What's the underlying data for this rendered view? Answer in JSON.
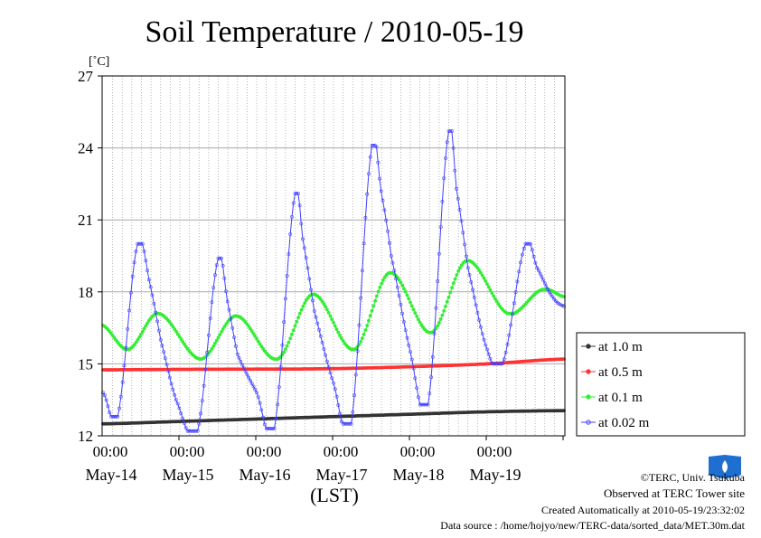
{
  "chart_data": {
    "type": "line",
    "title": "Soil Temperature / 2010-05-19",
    "ylabel": "[˚C]",
    "xlabel": "(LST)",
    "ylim": [
      12,
      27
    ],
    "yticks": [
      12,
      15,
      18,
      21,
      24,
      27
    ],
    "xlim": [
      0,
      6
    ],
    "x_units": "days from 2010-05-13 12:00 LST",
    "x_ticks": [
      {
        "x": 1.0,
        "time": "00:00",
        "date": "May-14"
      },
      {
        "x": 2.0,
        "time": "00:00",
        "date": "May-15"
      },
      {
        "x": 3.0,
        "time": "00:00",
        "date": "May-16"
      },
      {
        "x": 4.0,
        "time": "00:00",
        "date": "May-17"
      },
      {
        "x": 5.0,
        "time": "00:00",
        "date": "May-18"
      },
      {
        "x": 6.0,
        "time": "00:00",
        "date": "May-19"
      }
    ],
    "grid": true,
    "legend_position": "right",
    "series": [
      {
        "name": "at 1.0 m",
        "color": "#333333",
        "x": [
          0,
          1,
          2,
          3,
          4,
          5,
          6
        ],
        "y": [
          12.5,
          12.6,
          12.7,
          12.8,
          12.9,
          13.0,
          13.05
        ]
      },
      {
        "name": "at 0.5 m",
        "color": "#ff3333",
        "x": [
          0,
          1,
          2,
          3,
          4,
          5,
          6
        ],
        "y": [
          14.75,
          14.77,
          14.78,
          14.8,
          14.88,
          15.0,
          15.2
        ]
      },
      {
        "name": "at 0.1 m",
        "color": "#33ee33",
        "x": [
          0.0,
          0.33,
          0.72,
          1.27,
          1.73,
          2.27,
          2.73,
          3.27,
          3.73,
          4.27,
          4.73,
          5.27,
          5.72,
          6.0
        ],
        "y": [
          16.6,
          15.6,
          17.1,
          15.2,
          17.0,
          15.2,
          17.9,
          15.6,
          18.8,
          16.3,
          19.3,
          17.1,
          18.1,
          17.8
        ]
      },
      {
        "name": "at 0.02 m",
        "color": "#4040ff",
        "x": [
          0.0,
          0.19,
          0.45,
          0.62,
          0.75,
          0.95,
          1.23,
          1.5,
          1.62,
          1.75,
          2.0,
          2.23,
          2.5,
          2.6,
          2.75,
          3.0,
          3.23,
          3.5,
          3.62,
          3.75,
          4.0,
          4.23,
          4.5,
          4.6,
          4.75,
          5.0,
          5.2,
          5.5,
          5.65,
          5.85,
          6.0
        ],
        "y": [
          13.8,
          12.8,
          20.0,
          18.2,
          16.0,
          13.5,
          12.2,
          19.4,
          17.6,
          15.4,
          13.8,
          12.3,
          22.1,
          20.2,
          17.2,
          14.2,
          12.5,
          24.1,
          22.2,
          19.5,
          15.5,
          13.3,
          24.7,
          22.3,
          19.0,
          15.6,
          15.0,
          20.0,
          19.0,
          17.8,
          17.4
        ]
      }
    ]
  },
  "credits": {
    "copyright": "©TERC, Univ. Tsukuba",
    "observed": "Observed at TERC Tower site",
    "created": "Created Automatically at 2010-05-19/23:32:02",
    "source": "Data source : /home/hojyo/new/TERC-data/sorted_data/MET.30m.dat"
  },
  "logo": {
    "text": "TERC",
    "color": "#1f6fd0"
  }
}
